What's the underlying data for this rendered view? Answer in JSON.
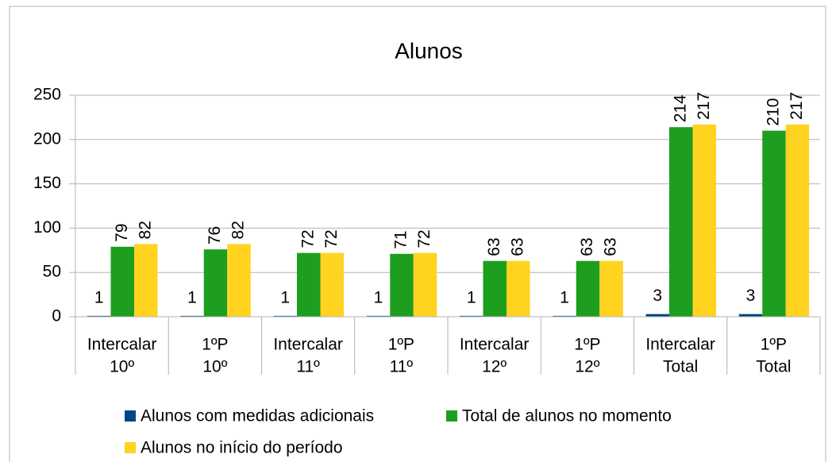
{
  "chart_data": {
    "type": "bar",
    "title": "Alunos",
    "categories": [
      [
        "Intercalar",
        "10º"
      ],
      [
        "1ºP",
        "10º"
      ],
      [
        "Intercalar",
        "11º"
      ],
      [
        "1ºP",
        "11º"
      ],
      [
        "Intercalar",
        "12º"
      ],
      [
        "1ºP",
        "12º"
      ],
      [
        "Intercalar",
        "Total"
      ],
      [
        "1ºP",
        "Total"
      ]
    ],
    "series": [
      {
        "name": "Alunos com medidas adicionais",
        "color": "#004586",
        "values": [
          1,
          1,
          1,
          1,
          1,
          1,
          3,
          3
        ]
      },
      {
        "name": "Total de alunos no momento",
        "color": "#1e9e1e",
        "values": [
          79,
          76,
          72,
          71,
          63,
          63,
          214,
          210
        ]
      },
      {
        "name": "Alunos no início do período",
        "color": "#ffd320",
        "values": [
          82,
          82,
          72,
          72,
          63,
          63,
          217,
          217
        ]
      }
    ],
    "ylim": [
      0,
      250
    ],
    "yticks": [
      0,
      50,
      100,
      150,
      200,
      250
    ],
    "grid": true,
    "legend": "bottom"
  }
}
